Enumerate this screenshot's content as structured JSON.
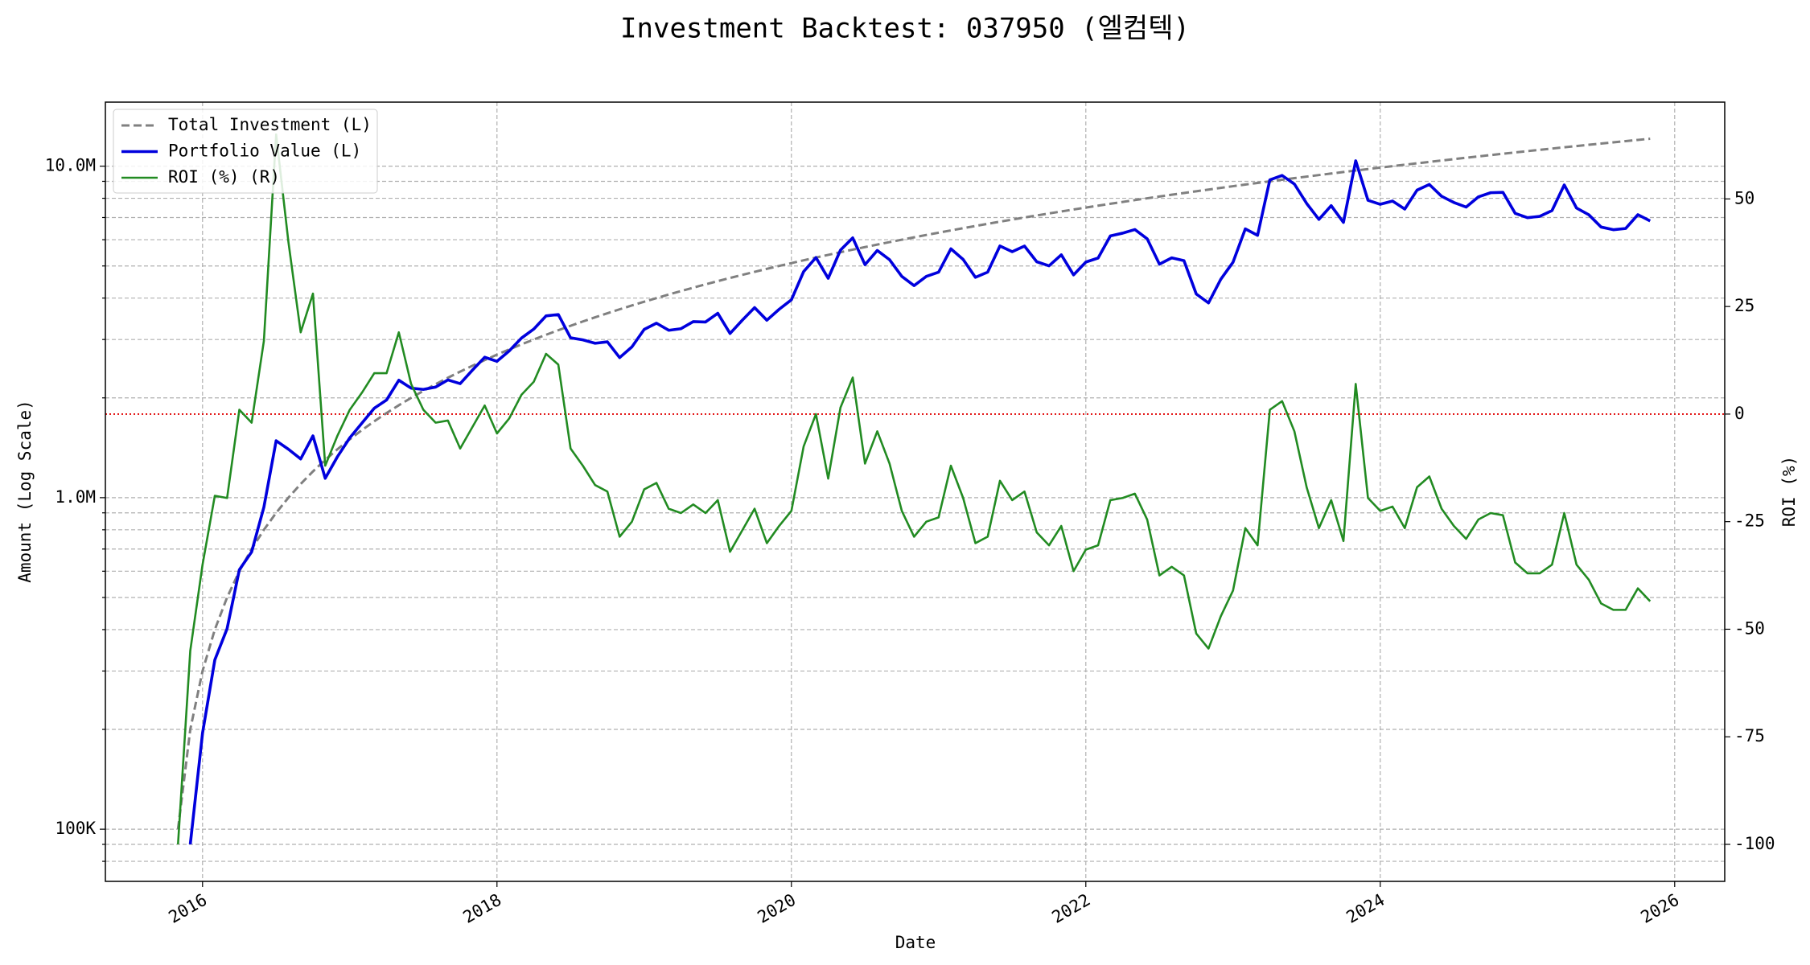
{
  "chart_data": {
    "type": "line",
    "title": "Investment Backtest: 037950 (엘컴텍)",
    "xlabel": "Date",
    "ylabel": "Amount (Log Scale)",
    "y2label": "ROI (%)",
    "ylog": true,
    "grid": true,
    "legend": "upper left",
    "ylabel_color": "#0000cc",
    "y2label_color": "#228b22",
    "xlim": [
      2015.34,
      2026.34
    ],
    "xticks": [
      2016,
      2018,
      2020,
      2022,
      2024,
      2026
    ],
    "ylim": [
      69600,
      15600000
    ],
    "yticks": [
      {
        "value": 100000,
        "label": "100K"
      },
      {
        "value": 1000000,
        "label": "1.0M"
      },
      {
        "value": 10000000,
        "label": "10.0M"
      }
    ],
    "yminor_ticks": [
      80000,
      90000,
      200000,
      300000,
      400000,
      500000,
      600000,
      700000,
      800000,
      900000,
      2000000,
      3000000,
      4000000,
      5000000,
      6000000,
      7000000,
      8000000,
      9000000
    ],
    "y2lim": [
      -108.6,
      72.5
    ],
    "y2ticks": [
      -100,
      -75,
      -50,
      -25,
      0,
      25,
      50
    ],
    "hline": {
      "value": 0,
      "axis": "y2",
      "color": "#e00000"
    },
    "x": [
      "2015-11",
      "2015-12",
      "2016-01",
      "2016-02",
      "2016-03",
      "2016-04",
      "2016-05",
      "2016-06",
      "2016-07",
      "2016-08",
      "2016-09",
      "2016-10",
      "2016-11",
      "2016-12",
      "2017-01",
      "2017-02",
      "2017-03",
      "2017-04",
      "2017-05",
      "2017-06",
      "2017-07",
      "2017-08",
      "2017-09",
      "2017-10",
      "2017-11",
      "2017-12",
      "2018-01",
      "2018-02",
      "2018-03",
      "2018-04",
      "2018-05",
      "2018-06",
      "2018-07",
      "2018-08",
      "2018-09",
      "2018-10",
      "2018-11",
      "2018-12",
      "2019-01",
      "2019-02",
      "2019-03",
      "2019-04",
      "2019-05",
      "2019-06",
      "2019-07",
      "2019-08",
      "2019-09",
      "2019-10",
      "2019-11",
      "2019-12",
      "2020-01",
      "2020-02",
      "2020-03",
      "2020-04",
      "2020-05",
      "2020-06",
      "2020-07",
      "2020-08",
      "2020-09",
      "2020-10",
      "2020-11",
      "2020-12",
      "2021-01",
      "2021-02",
      "2021-03",
      "2021-04",
      "2021-05",
      "2021-06",
      "2021-07",
      "2021-08",
      "2021-09",
      "2021-10",
      "2021-11",
      "2021-12",
      "2022-01",
      "2022-02",
      "2022-03",
      "2022-04",
      "2022-05",
      "2022-06",
      "2022-07",
      "2022-08",
      "2022-09",
      "2022-10",
      "2022-11",
      "2022-12",
      "2023-01",
      "2023-02",
      "2023-03",
      "2023-04",
      "2023-05",
      "2023-06",
      "2023-07",
      "2023-08",
      "2023-09",
      "2023-10",
      "2023-11",
      "2023-12",
      "2024-01",
      "2024-02",
      "2024-03",
      "2024-04",
      "2024-05",
      "2024-06",
      "2024-07",
      "2024-08",
      "2024-09",
      "2024-10",
      "2024-11",
      "2024-12",
      "2025-01",
      "2025-02",
      "2025-03",
      "2025-04",
      "2025-05",
      "2025-06",
      "2025-07",
      "2025-08",
      "2025-09",
      "2025-10",
      "2025-11"
    ],
    "series": [
      {
        "name": "Total Investment (L)",
        "color": "#808080",
        "style": "dashed",
        "width": 3,
        "values": [
          100000,
          200000,
          300000,
          400000,
          500000,
          600000,
          700000,
          800000,
          900000,
          1000000,
          1100000,
          1200000,
          1300000,
          1400000,
          1500000,
          1600000,
          1700000,
          1800000,
          1900000,
          2000000,
          2100000,
          2200000,
          2300000,
          2400000,
          2500000,
          2600000,
          2700000,
          2800000,
          2900000,
          3000000,
          3100000,
          3200000,
          3300000,
          3400000,
          3500000,
          3600000,
          3700000,
          3800000,
          3900000,
          4000000,
          4100000,
          4200000,
          4300000,
          4400000,
          4500000,
          4600000,
          4700000,
          4800000,
          4900000,
          5000000,
          5100000,
          5200000,
          5300000,
          5400000,
          5500000,
          5600000,
          5700000,
          5800000,
          5900000,
          6000000,
          6100000,
          6200000,
          6300000,
          6400000,
          6500000,
          6600000,
          6700000,
          6800000,
          6900000,
          7000000,
          7100000,
          7200000,
          7300000,
          7400000,
          7500000,
          7600000,
          7700000,
          7800000,
          7900000,
          8000000,
          8100000,
          8200000,
          8300000,
          8400000,
          8500000,
          8600000,
          8700000,
          8800000,
          8900000,
          9000000,
          9100000,
          9200000,
          9300000,
          9400000,
          9500000,
          9600000,
          9700000,
          9800000,
          9900000,
          10000000,
          10100000,
          10200000,
          10300000,
          10400000,
          10500000,
          10600000,
          10700000,
          10800000,
          10900000,
          11000000,
          11100000,
          11200000,
          11300000,
          11400000,
          11500000,
          11600000,
          11700000,
          11800000,
          11900000,
          12000000,
          12100000
        ]
      },
      {
        "name": "Portfolio Value (L)",
        "color": "#0000dd",
        "style": "solid",
        "width": 3.6,
        "values": [
          null,
          90000,
          195000,
          324000,
          402500,
          606000,
          686000,
          936000,
          1485000,
          1400000,
          1309000,
          1536000,
          1144000,
          1330000,
          1515000,
          1680000,
          1861500,
          1971000,
          2261000,
          2140000,
          2121000,
          2156000,
          2265500,
          2208000,
          2425000,
          2652000,
          2578500,
          2772000,
          3030500,
          3225000,
          3534000,
          3568000,
          3036000,
          2992000,
          2922500,
          2952000,
          2645500,
          2850000,
          3217500,
          3360000,
          3198000,
          3234000,
          3397000,
          3388000,
          3600000,
          3128000,
          3431000,
          3744000,
          3430000,
          3700000,
          3952500,
          4810000,
          5300000,
          4590000,
          5582500,
          6076000,
          5044500,
          5568000,
          5221500,
          4650000,
          4361500,
          4650000,
          4788000,
          5632000,
          5232500,
          4620000,
          4790500,
          5746000,
          5520000,
          5740000,
          5147500,
          5004000,
          5402000,
          4699000,
          5137500,
          5282000,
          6160000,
          6279000,
          6438500,
          6040000,
          5062500,
          5289000,
          5187500,
          4116000,
          3867500,
          4558000,
          5133000,
          6468000,
          6185500,
          9090000,
          9373000,
          8832000,
          7719000,
          6909000,
          7600000,
          6768000,
          10379000,
          7889000,
          7672500,
          7850000,
          7423500,
          8466000,
          8806500,
          8112000,
          7770000,
          7526000,
          8078500,
          8316000,
          8338500,
          7205000,
          6993000,
          7056000,
          7345000,
          8778000,
          7475000,
          7134000,
          6552000,
          6431000,
          6485500,
          7140000,
          6836500
        ]
      },
      {
        "name": "ROI (%) (R)",
        "color": "#228b22",
        "style": "solid",
        "width": 2.6,
        "axis": "y2",
        "values": [
          -100,
          -55,
          -35,
          -19,
          -19.5,
          1,
          -2,
          17,
          65,
          40,
          19,
          28,
          -12,
          -5,
          1,
          5,
          9.5,
          9.5,
          19,
          7,
          1,
          -2,
          -1.5,
          -8,
          -3,
          2,
          -4.5,
          -1,
          4.5,
          7.5,
          14,
          11.5,
          -8,
          -12,
          -16.5,
          -18,
          -28.5,
          -25,
          -17.5,
          -16,
          -22,
          -23,
          -21,
          -23,
          -20,
          -32,
          -27,
          -22,
          -30,
          -26,
          -22.5,
          -7.5,
          0,
          -15,
          1.5,
          8.5,
          -11.5,
          -4,
          -11.5,
          -22.5,
          -28.5,
          -25,
          -24,
          -12,
          -19.5,
          -30,
          -28.5,
          -15.5,
          -20,
          -18,
          -27.5,
          -30.5,
          -26,
          -36.5,
          -31.5,
          -30.5,
          -20,
          -19.5,
          -18.5,
          -24.5,
          -37.5,
          -35.5,
          -37.5,
          -51,
          -54.5,
          -47,
          -41,
          -26.5,
          -30.5,
          1,
          3,
          -4,
          -17,
          -26.5,
          -20,
          -29.5,
          7,
          -19.5,
          -22.5,
          -21.5,
          -26.5,
          -17,
          -14.5,
          -22,
          -26,
          -29,
          -24.5,
          -23,
          -23.5,
          -34.5,
          -37,
          -37,
          -35,
          -23,
          -35,
          -38.5,
          -44,
          -45.5,
          -45.5,
          -40.5,
          -43.5
        ]
      }
    ]
  }
}
